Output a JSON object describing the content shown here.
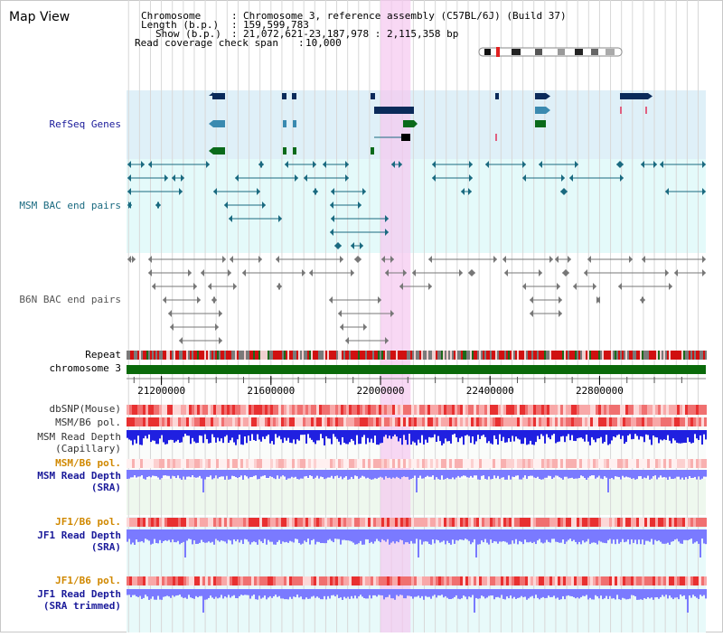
{
  "title": "Map View",
  "info": {
    "chromosome_label": "Chromosome",
    "chromosome_value": "Chromosome 3, reference assembly (C57BL/6J) (Build 37)",
    "length_label": "Length (b.p.)",
    "length_value": "159,599,783",
    "show_label": "Show (b.p.)",
    "show_value": "21,072,621-23,187,978 : 2,115,358 bp",
    "coverage_label": "Read coverage check span",
    "coverage_value": "10,000"
  },
  "view": {
    "start_bp": 21072621,
    "end_bp": 23187978,
    "highlight_start_bp": 22000000,
    "highlight_end_bp": 22110000
  },
  "tracks": {
    "refseq": "RefSeq Genes",
    "msm_bac": "MSM BAC end pairs",
    "b6n_bac": "B6N BAC end pairs",
    "repeat": "Repeat",
    "chromosome": "chromosome 3",
    "dbsnp": "dbSNP(Mouse)",
    "msm_pol_1": "MSM/B6 pol.",
    "msm_depth_cap_1": "MSM Read Depth",
    "msm_depth_cap_2": "(Capillary)",
    "msm_pol_2": "MSM/B6 pol.",
    "msm_depth_sra_1": "MSM Read Depth",
    "msm_depth_sra_2": "(SRA)",
    "jf1_pol_1": "JF1/B6 pol.",
    "jf1_depth_sra_1": "JF1 Read Depth",
    "jf1_depth_sra_2": "(SRA)",
    "jf1_pol_2": "JF1/B6 pol.",
    "jf1_depth_trim_1": "JF1 Read Depth",
    "jf1_depth_trim_2": "(SRA trimmed)"
  },
  "ruler": {
    "ticks": [
      "21200000",
      "21600000",
      "22000000",
      "22400000",
      "22800000"
    ]
  },
  "colors": {
    "refseq_bg": "#dff0f8",
    "msm_bac_bg": "#e4fafa",
    "b6n_bac_bg": "#fdfdfd",
    "msm_feature": "#1a6a80",
    "b6n_feature": "#777777",
    "gene_navy": "#0a2a5a",
    "gene_teal": "#3a8ab0",
    "gene_green": "#0a6a1a",
    "highlight": "#f5c8f0",
    "label_blue": "#1a1a9a",
    "label_orange": "#d08800",
    "label_teal": "#1a6a80",
    "repeat_red": "#d01010",
    "repeat_green": "#1a6a1a",
    "chrom_green": "#0a6a0a",
    "depth_blue": "#2020e0",
    "depth_light": "#7a7aff"
  }
}
